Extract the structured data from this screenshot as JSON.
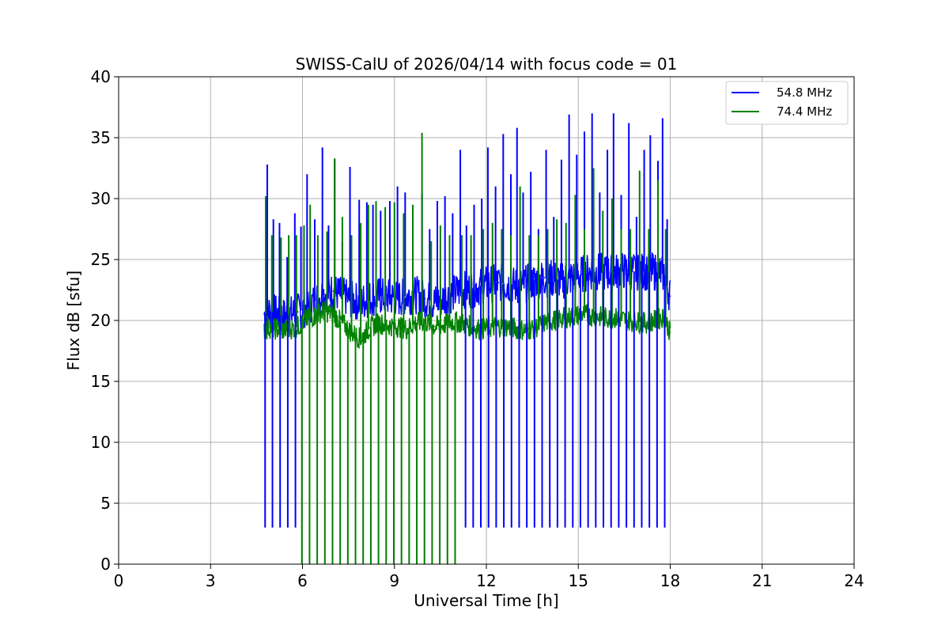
{
  "chart_data": {
    "type": "line",
    "title": "SWISS-CalU of 2026/04/14 with focus code = 01",
    "xlabel": "Universal Time [h]",
    "ylabel": "Flux dB [sfu]",
    "xlim": [
      0,
      24
    ],
    "ylim": [
      0,
      40
    ],
    "xticks": [
      "0",
      "3",
      "6",
      "9",
      "12",
      "15",
      "18",
      "21",
      "24"
    ],
    "yticks": [
      "0",
      "5",
      "10",
      "15",
      "20",
      "25",
      "30",
      "35",
      "40"
    ],
    "grid": true,
    "legend_position": "top-right",
    "series": [
      {
        "name": "54.8 MHz",
        "color": "#0000ff",
        "x": [
          4.75,
          4.9,
          5.1,
          5.35,
          5.6,
          5.85,
          6.1,
          6.4,
          6.7,
          7.0,
          7.3,
          7.6,
          7.9,
          8.2,
          8.5,
          8.8,
          9.1,
          9.4,
          9.7,
          10.0,
          10.3,
          10.6,
          10.9,
          11.2,
          11.5,
          11.8,
          12.1,
          12.4,
          12.7,
          13.0,
          13.3,
          13.6,
          13.9,
          14.2,
          14.5,
          14.8,
          15.1,
          15.4,
          15.7,
          16.0,
          16.3,
          16.6,
          16.9,
          17.2,
          17.5,
          17.8,
          18.0
        ],
        "y": [
          20.5,
          20.8,
          20.6,
          20.3,
          20.5,
          20.7,
          21.0,
          21.6,
          22.2,
          22.4,
          22.0,
          21.7,
          21.5,
          21.8,
          22.0,
          21.9,
          21.8,
          22.0,
          22.1,
          21.8,
          21.5,
          21.8,
          22.2,
          22.5,
          22.6,
          22.8,
          23.0,
          23.1,
          23.0,
          22.8,
          23.0,
          23.3,
          23.5,
          23.4,
          23.3,
          23.5,
          23.8,
          24.0,
          24.0,
          23.9,
          24.0,
          24.1,
          24.0,
          24.0,
          24.0,
          23.8,
          22.0
        ]
      },
      {
        "name": "74.4 MHz",
        "color": "#008000",
        "x": [
          4.75,
          4.9,
          5.1,
          5.35,
          5.6,
          5.85,
          6.1,
          6.4,
          6.7,
          7.0,
          7.3,
          7.6,
          7.9,
          8.2,
          8.5,
          8.8,
          9.1,
          9.4,
          9.7,
          10.0,
          10.3,
          10.6,
          10.9,
          11.2,
          11.5,
          11.8,
          12.1,
          12.4,
          12.7,
          13.0,
          13.3,
          13.6,
          13.9,
          14.2,
          14.5,
          14.8,
          15.1,
          15.4,
          15.7,
          16.0,
          16.3,
          16.6,
          16.9,
          17.2,
          17.5,
          17.8,
          18.0
        ],
        "y": [
          19.2,
          19.4,
          19.3,
          19.2,
          19.3,
          19.5,
          20.0,
          20.4,
          20.8,
          20.5,
          19.8,
          19.0,
          18.5,
          19.4,
          19.8,
          19.6,
          19.5,
          19.3,
          19.8,
          19.9,
          19.5,
          19.6,
          19.9,
          19.8,
          19.5,
          19.3,
          19.4,
          19.5,
          19.5,
          19.3,
          19.2,
          19.4,
          19.8,
          20.0,
          20.2,
          20.3,
          20.5,
          20.4,
          20.3,
          20.2,
          20.2,
          20.0,
          19.9,
          19.8,
          20.0,
          20.3,
          19.0
        ]
      }
    ],
    "spikes": [
      {
        "series": 0,
        "x": [
          4.85,
          5.05,
          5.25,
          5.5,
          5.75,
          5.95,
          6.15,
          6.4,
          6.65,
          6.85,
          7.05,
          7.3,
          7.55,
          7.85,
          8.1,
          8.3,
          8.55,
          8.85,
          9.1,
          9.35,
          9.6,
          9.9,
          10.15,
          10.4,
          10.65,
          10.9,
          11.15,
          11.35,
          11.6,
          11.85,
          12.05,
          12.3,
          12.55,
          12.8,
          13.0,
          13.2,
          13.45,
          13.7,
          13.95,
          14.2,
          14.45,
          14.7,
          14.95,
          15.2,
          15.45,
          15.7,
          15.95,
          16.15,
          16.4,
          16.65,
          16.9,
          17.15,
          17.35,
          17.6,
          17.75,
          17.9
        ],
        "y": [
          32.8,
          28.3,
          28.0,
          25.2,
          28.8,
          27.7,
          32.0,
          28.3,
          34.2,
          27.8,
          33.2,
          26.5,
          32.6,
          29.9,
          29.7,
          29.5,
          29.0,
          29.8,
          31.0,
          30.5,
          28.0,
          30.4,
          27.5,
          29.8,
          30.2,
          28.8,
          34.0,
          27.8,
          29.5,
          30.0,
          34.2,
          31.0,
          35.3,
          32.0,
          35.8,
          30.5,
          32.2,
          27.5,
          34.0,
          28.5,
          33.2,
          36.9,
          33.6,
          35.5,
          37.0,
          30.5,
          34.0,
          37.0,
          30.3,
          36.2,
          28.5,
          34.0,
          35.2,
          33.1,
          36.6,
          28.3
        ]
      },
      {
        "series": 1,
        "x": [
          4.8,
          5.0,
          5.3,
          5.55,
          5.8,
          6.05,
          6.25,
          6.5,
          6.8,
          7.05,
          7.3,
          7.6,
          7.9,
          8.15,
          8.4,
          8.7,
          9.0,
          9.3,
          9.6,
          9.9,
          10.2,
          10.5,
          10.8,
          11.2,
          11.5,
          11.9,
          12.2,
          12.5,
          12.8,
          13.1,
          13.4,
          13.7,
          14.0,
          14.3,
          14.6,
          14.9,
          15.2,
          15.5,
          15.8,
          16.1,
          16.4,
          16.7,
          17.0,
          17.3,
          17.6,
          17.85
        ],
        "y": [
          30.2,
          27.0,
          26.8,
          27.0,
          27.0,
          27.8,
          29.5,
          27.0,
          27.3,
          33.3,
          28.5,
          27.0,
          28.0,
          29.5,
          29.8,
          29.3,
          29.7,
          28.8,
          29.5,
          35.4,
          26.5,
          27.8,
          27.0,
          27.0,
          27.0,
          27.5,
          28.0,
          27.5,
          27.0,
          31.0,
          27.0,
          27.0,
          27.5,
          28.3,
          28.0,
          30.3,
          27.5,
          32.5,
          29.0,
          30.0,
          27.5,
          27.5,
          32.3,
          27.5,
          31.5,
          27.5
        ]
      }
    ],
    "dropouts": [
      {
        "series": 0,
        "x": [
          4.78,
          5.02,
          5.27,
          5.52,
          5.77,
          11.32,
          11.57,
          11.82,
          12.07,
          12.32,
          12.57,
          12.82,
          13.07,
          13.32,
          13.57,
          13.82,
          14.07,
          14.32,
          14.57,
          14.82,
          15.07,
          15.32,
          15.57,
          15.82,
          16.07,
          16.32,
          16.57,
          16.82,
          17.07,
          17.32,
          17.57,
          17.82
        ],
        "low": 3.0,
        "high": 4.8
      },
      {
        "series": 1,
        "x": [
          5.98,
          6.23,
          6.48,
          6.73,
          6.98,
          7.23,
          7.48,
          7.73,
          7.98,
          8.23,
          8.48,
          8.73,
          8.98,
          9.23,
          9.48,
          9.73,
          9.98,
          10.23,
          10.48,
          10.73,
          10.98
        ],
        "low": 0.0,
        "high": 25.0
      }
    ]
  }
}
